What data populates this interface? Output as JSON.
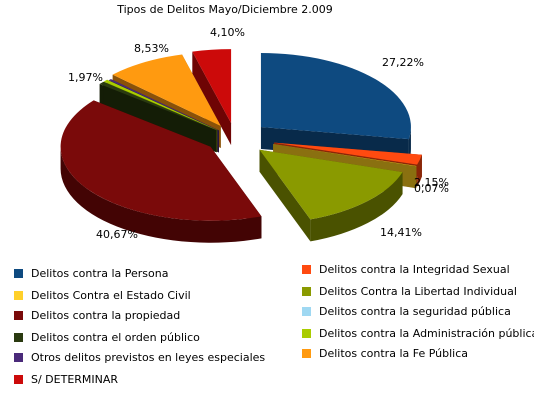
{
  "chart_data": {
    "type": "pie",
    "style": "3d-exploded",
    "title": "Tipos de Delitos Mayo/Diciembre 2.009",
    "legend_position": "bottom",
    "slices": [
      {
        "name": "Delitos contra la Persona",
        "value": 27.22,
        "label": "27,22%",
        "color": "#0e4a80",
        "dark": "#082a4a"
      },
      {
        "name": "Delitos contra la Integridad Sexual",
        "value": 2.15,
        "label": "2,15%",
        "color": "#ff4a10",
        "dark": "#8a2708"
      },
      {
        "name": "Delitos Contra el Estado Civil",
        "value": 0.07,
        "label": "0,07%",
        "color": "#ffd02a",
        "dark": "#8a7010"
      },
      {
        "name": "Delitos Contra la Libertad Individual",
        "value": 14.41,
        "label": "14,41%",
        "color": "#8a9a00",
        "dark": "#4a5200"
      },
      {
        "name": "Delitos contra la propiedad",
        "value": 40.67,
        "label": "40,67%",
        "color": "#7a0a0a",
        "dark": "#430404"
      },
      {
        "name": "Delitos contra la seguridad pública",
        "value": 0.0,
        "label": "",
        "color": "#9fd8f2",
        "dark": "#5a8aa0"
      },
      {
        "name": "Delitos contra el orden público",
        "value": 0.6,
        "label": "",
        "color": "#2a3a10",
        "dark": "#141d06"
      },
      {
        "name": "Delitos contra la Administración pública",
        "value": 0.5,
        "label": "",
        "color": "#aacc00",
        "dark": "#5e7200"
      },
      {
        "name": "Otros delitos previstos en leyes especiales",
        "value": 0.3,
        "label": "",
        "color": "#4a2a7a",
        "dark": "#261440"
      },
      {
        "name": "Delitos contra la  Fe  Pública",
        "value": 8.53,
        "label": "8,53%",
        "color": "#ff9a10",
        "dark": "#8a5208"
      },
      {
        "name": "S/ DETERMINAR",
        "value": 4.1,
        "label": "4,10%",
        "color": "#cc0a0a",
        "dark": "#6e0404"
      }
    ],
    "extra_labels": [
      {
        "text": "1,97%"
      }
    ]
  },
  "legend_items": [
    {
      "label": "Delitos contra la Persona",
      "color": "#0e4a80"
    },
    {
      "label": "Delitos contra la Integridad Sexual",
      "color": "#ff4a10"
    },
    {
      "label": "Delitos Contra el Estado Civil",
      "color": "#ffd02a"
    },
    {
      "label": "Delitos Contra la Libertad Individual",
      "color": "#8a9a00"
    },
    {
      "label": "Delitos contra la propiedad",
      "color": "#7a0a0a"
    },
    {
      "label": "Delitos contra la seguridad pública",
      "color": "#9fd8f2"
    },
    {
      "label": "Delitos contra el orden público",
      "color": "#2a3a10"
    },
    {
      "label": "Delitos contra la Administración pública",
      "color": "#aacc00"
    },
    {
      "label": "Otros delitos previstos en leyes especiales",
      "color": "#4a2a7a"
    },
    {
      "label": "Delitos contra la  Fe  Pública",
      "color": "#ff9a10"
    },
    {
      "label": "S/ DETERMINAR",
      "color": "#cc0a0a"
    }
  ]
}
